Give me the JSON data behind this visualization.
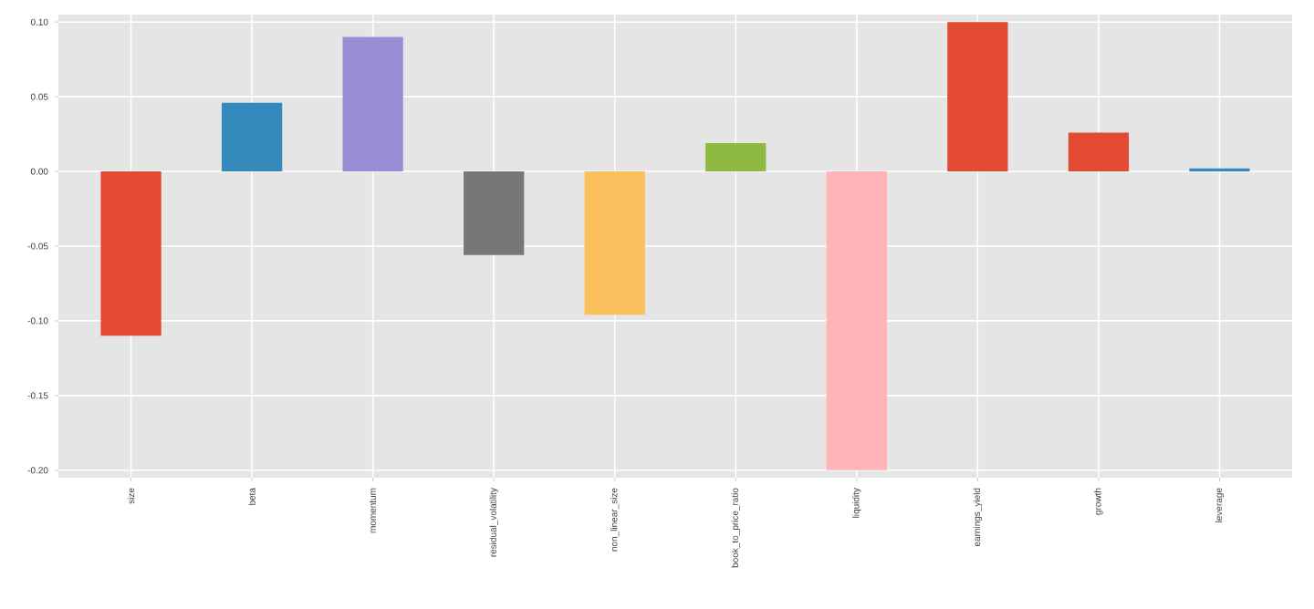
{
  "chart_data": {
    "type": "bar",
    "categories": [
      "size",
      "beta",
      "momentum",
      "residual_volatility",
      "non_linear_size",
      "book_to_price_ratio",
      "liquidity",
      "earnings_yield",
      "growth",
      "leverage"
    ],
    "values": [
      -0.11,
      0.046,
      0.09,
      -0.056,
      -0.096,
      0.019,
      -0.2,
      0.1,
      0.026,
      0.002
    ],
    "colors": [
      "#e24a33",
      "#348abd",
      "#988ed5",
      "#777777",
      "#fbc15e",
      "#8eba42",
      "#ffb5b8",
      "#e24a33",
      "#e24a33",
      "#348abd"
    ],
    "ylim": [
      -0.205,
      0.105
    ],
    "yticks": [
      {
        "value": 0.1,
        "label": "0.10"
      },
      0.05,
      {
        "value": 0.0,
        "label": "0.00"
      },
      -0.05,
      {
        "value": -0.1,
        "label": "-0.10"
      },
      -0.15,
      {
        "value": -0.2,
        "label": "-0.20"
      }
    ],
    "grid": true
  }
}
